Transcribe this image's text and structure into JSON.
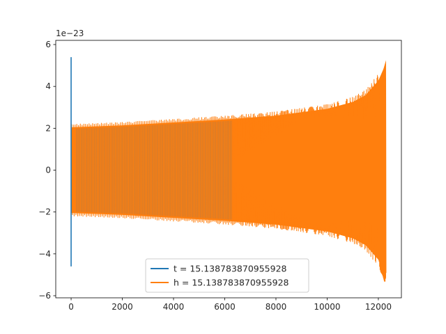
{
  "chart_data": {
    "type": "line",
    "title": "",
    "xlabel": "",
    "ylabel": "",
    "y_scale_label": "1e−23",
    "xlim": [
      -600,
      12900
    ],
    "ylim": [
      -6.1,
      6.2
    ],
    "x_ticks": [
      0,
      2000,
      4000,
      6000,
      8000,
      10000,
      12000
    ],
    "x_tick_labels": [
      "0",
      "2000",
      "4000",
      "6000",
      "8000",
      "10000",
      "12000"
    ],
    "y_ticks": [
      -6,
      -4,
      -2,
      0,
      2,
      4,
      6
    ],
    "y_tick_labels": [
      "−6",
      "−4",
      "−2",
      "0",
      "2",
      "4",
      "6"
    ],
    "grid": false,
    "legend_position": "lower-center",
    "series": [
      {
        "name": "t = 15.138783870955928",
        "color": "#1f77b4",
        "envelope": {
          "x": [
            0,
            0
          ],
          "upper": [
            5.4,
            5.4
          ],
          "lower": [
            -4.6,
            -4.6
          ]
        }
      },
      {
        "name": "h = 15.138783870955928",
        "color": "#ff7f0e",
        "envelope": {
          "x": [
            0,
            2000,
            4000,
            6000,
            8000,
            10000,
            11000,
            11500,
            12000,
            12200,
            12300
          ],
          "upper": [
            2.2,
            2.3,
            2.45,
            2.6,
            2.8,
            3.15,
            3.5,
            3.85,
            4.6,
            5.2,
            5.65
          ],
          "lower": [
            -2.2,
            -2.3,
            -2.45,
            -2.6,
            -2.8,
            -3.15,
            -3.5,
            -3.85,
            -4.6,
            -5.2,
            -5.55
          ]
        }
      }
    ]
  }
}
